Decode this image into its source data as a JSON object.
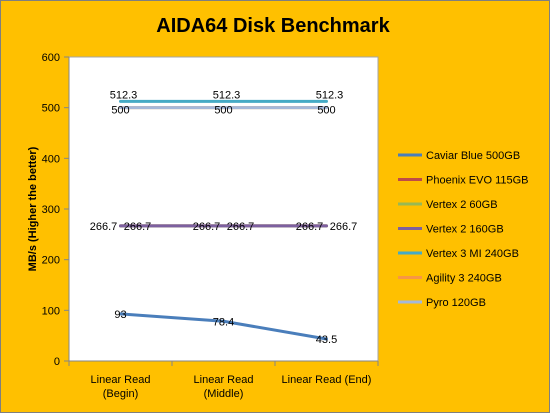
{
  "chart_data": {
    "type": "line",
    "title": "AIDA64 Disk Benchmark",
    "xlabel": "",
    "ylabel": "MB/s (Higher the better)",
    "ylim": [
      0,
      600
    ],
    "yticks": [
      0,
      100,
      200,
      300,
      400,
      500,
      600
    ],
    "categories": [
      [
        "Linear Read",
        "(Begin)"
      ],
      [
        "Linear Read",
        "(Middle)"
      ],
      [
        "Linear Read (End)"
      ]
    ],
    "grid": false,
    "legend_position": "right",
    "series": [
      {
        "name": "Caviar Blue 500GB",
        "color": "#4a7ebb",
        "values": [
          93,
          78.4,
          43.5
        ],
        "labels": [
          "93",
          "78.4",
          "43.5"
        ]
      },
      {
        "name": "Phoenix EVO 115GB",
        "color": "#be4b48",
        "values": [
          266.7,
          266.7,
          266.7
        ],
        "labels": [
          "266.7",
          "266.7",
          "266.7"
        ]
      },
      {
        "name": "Vertex 2 60GB",
        "color": "#98b954",
        "values": [
          266.7,
          266.7,
          266.7
        ],
        "labels": [
          "",
          "",
          ""
        ]
      },
      {
        "name": "Vertex 2 160GB",
        "color": "#7d60a0",
        "values": [
          266.7,
          266.7,
          266.7
        ],
        "labels": [
          "266.7",
          "266.7",
          "266.7"
        ]
      },
      {
        "name": "Vertex 3 MI 240GB",
        "color": "#46aac5",
        "values": [
          512.3,
          512.3,
          512.3
        ],
        "labels": [
          "512.3",
          "512.3",
          "512.3"
        ]
      },
      {
        "name": "Agility 3 240GB",
        "color": "#f79646",
        "values": [
          500,
          500,
          500
        ],
        "labels": [
          "",
          "",
          ""
        ]
      },
      {
        "name": "Pyro 120GB",
        "color": "#a5b8d9",
        "values": [
          500,
          500,
          500
        ],
        "labels": [
          "500",
          "500",
          "500"
        ]
      }
    ]
  }
}
